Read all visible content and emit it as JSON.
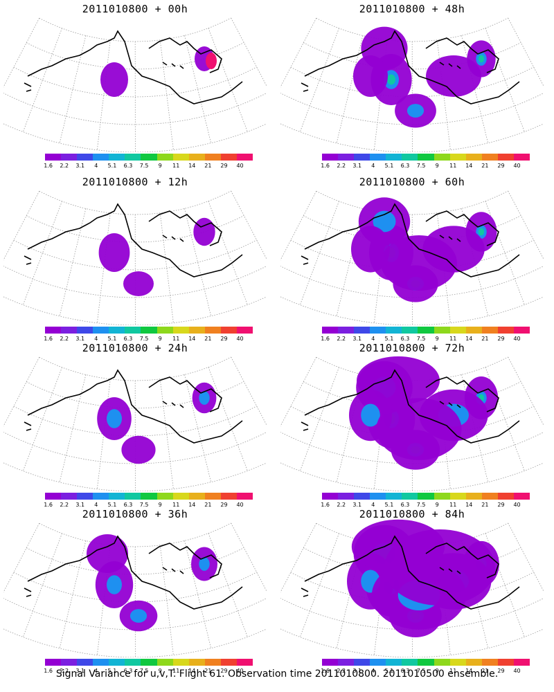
{
  "panels": [
    {
      "title": "2011010800 + 00h",
      "intensity": 0
    },
    {
      "title": "2011010800 + 48h",
      "intensity": 4
    },
    {
      "title": "2011010800 + 12h",
      "intensity": 1
    },
    {
      "title": "2011010800 + 60h",
      "intensity": 5
    },
    {
      "title": "2011010800 + 24h",
      "intensity": 2
    },
    {
      "title": "2011010800 + 72h",
      "intensity": 6
    },
    {
      "title": "2011010800 + 36h",
      "intensity": 3
    },
    {
      "title": "2011010800 + 84h",
      "intensity": 7
    }
  ],
  "colorbar": {
    "labels": [
      "1.6",
      "2.2",
      "3.1",
      "4",
      "5.1",
      "6.3",
      "7.5",
      "9",
      "11",
      "14",
      "21",
      "29",
      "40"
    ],
    "colors": [
      "#9400d3",
      "#7b1fe0",
      "#3f48e8",
      "#1e90f0",
      "#12b4d4",
      "#10c8a0",
      "#10c840",
      "#8ed81c",
      "#d8d81c",
      "#e8b01c",
      "#f08020",
      "#f04030",
      "#f01070"
    ]
  },
  "footer": "Signal Variance for u,v,T. Flight 61. Observation time 2011010800. 2011010500 ensemble."
}
